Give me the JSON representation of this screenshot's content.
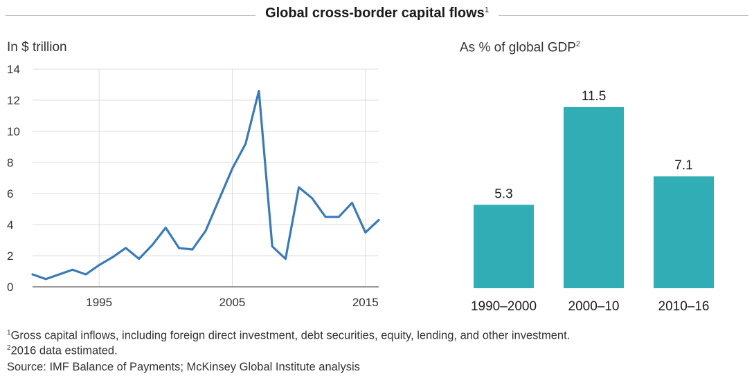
{
  "header": {
    "title": "Global cross-border capital flows",
    "title_note": "1"
  },
  "chart_data": [
    {
      "type": "line",
      "ylabel": "In $ trillion",
      "ylim": [
        0,
        14
      ],
      "yticks": [
        0,
        2,
        4,
        6,
        8,
        10,
        12,
        14
      ],
      "xlim": [
        1990,
        2016
      ],
      "xticks": [
        1995,
        2005,
        2015
      ],
      "grid": true,
      "color": "#3a7ab8",
      "x": [
        1990,
        1991,
        1992,
        1993,
        1994,
        1995,
        1996,
        1997,
        1998,
        1999,
        2000,
        2001,
        2002,
        2003,
        2004,
        2005,
        2006,
        2007,
        2008,
        2009,
        2010,
        2011,
        2012,
        2013,
        2014,
        2015,
        2016
      ],
      "y": [
        0.8,
        0.5,
        0.8,
        1.1,
        0.8,
        1.4,
        1.9,
        2.5,
        1.8,
        2.7,
        3.8,
        2.5,
        2.4,
        3.6,
        5.6,
        7.6,
        9.2,
        12.6,
        2.6,
        1.8,
        6.4,
        5.7,
        4.5,
        4.5,
        5.4,
        3.5,
        4.3
      ]
    },
    {
      "type": "bar",
      "title": "As % of global GDP",
      "title_note": "2",
      "categories": [
        "1990–2000",
        "2000–10",
        "2010–16"
      ],
      "values": [
        5.3,
        11.5,
        7.1
      ],
      "value_labels": [
        "5.3",
        "11.5",
        "7.1"
      ],
      "ylim": [
        0,
        11.5
      ],
      "grid": false,
      "color": "#31adb6"
    }
  ],
  "footnotes": {
    "note1_mark": "1",
    "note1": "Gross capital inflows, including foreign direct investment, debt securities, equity, lending, and other investment.",
    "note2_mark": "2",
    "note2": "2016 data estimated.",
    "source": "Source: IMF Balance of Payments; McKinsey Global Institute analysis"
  }
}
